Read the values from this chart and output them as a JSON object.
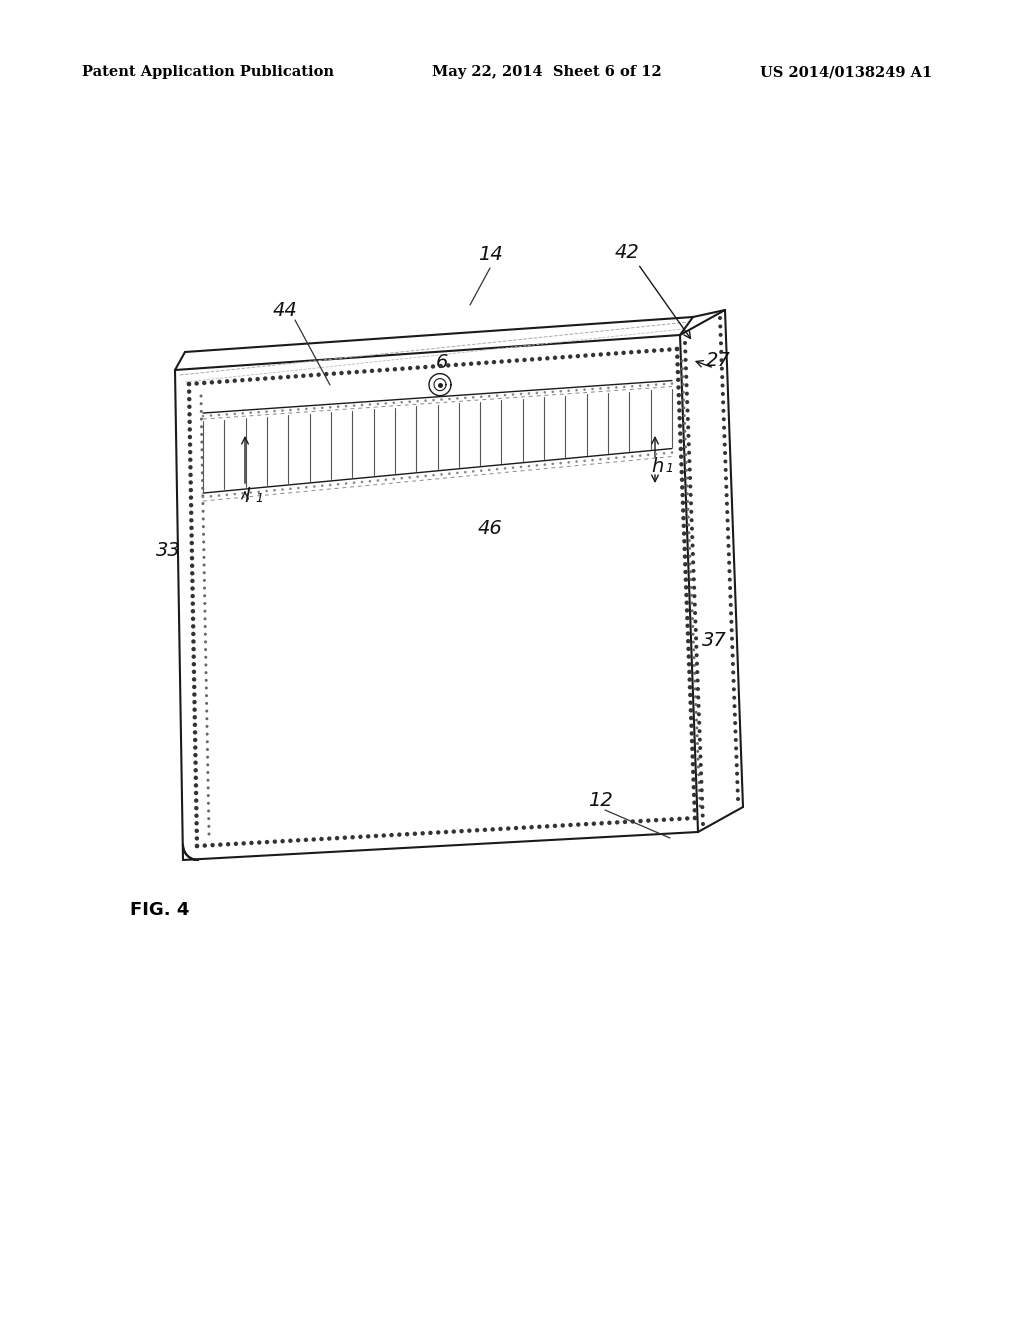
{
  "background_color": "#ffffff",
  "header_left": "Patent Application Publication",
  "header_mid": "May 22, 2014  Sheet 6 of 12",
  "header_right": "US 2014/0138249 A1",
  "figure_label": "FIG. 4",
  "line_color": "#1a1a1a",
  "dot_color": "#333333"
}
